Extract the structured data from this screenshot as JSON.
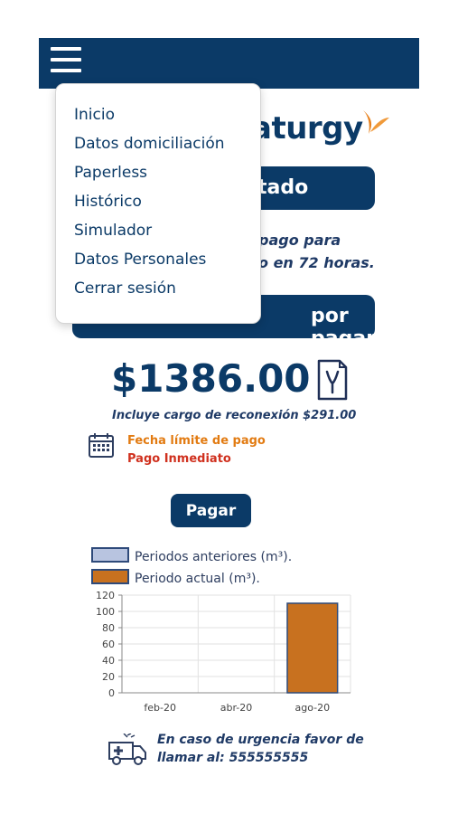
{
  "brand": {
    "logo_text": "aturgy",
    "color": "#0b3a67",
    "accent": "#e8821e"
  },
  "header": {
    "menu_icon": "hamburger-icon"
  },
  "status": {
    "label": "tado"
  },
  "info": {
    "line1": "pago para",
    "line2": "o en 72 horas."
  },
  "amount_bar": {
    "label": "por pagar"
  },
  "menu": {
    "items": [
      {
        "label": "Inicio"
      },
      {
        "label": "Datos domiciliación"
      },
      {
        "label": "Paperless"
      },
      {
        "label": "Histórico"
      },
      {
        "label": "Simulador"
      },
      {
        "label": "Datos Personales"
      },
      {
        "label": "Cerrar sesión"
      }
    ]
  },
  "bill": {
    "amount": "$1386.00",
    "reconnection": "Incluye cargo de reconexión $291.00",
    "due_label": "Fecha límite de pago",
    "due_value": "Pago Inmediato",
    "pay_label": "Pagar"
  },
  "legend": {
    "previous": "Periodos anteriores (m³).",
    "current": "Periodo actual (m³)."
  },
  "chart_data": {
    "type": "bar",
    "categories": [
      "feb-20",
      "abr-20",
      "ago-20"
    ],
    "series": [
      {
        "name": "Periodos anteriores (m³).",
        "values": [
          0,
          0,
          0
        ],
        "color": "#b8c4e0"
      },
      {
        "name": "Periodo actual (m³).",
        "values": [
          0,
          0,
          110
        ],
        "color": "#c8711f"
      }
    ],
    "yticks": [
      0,
      20,
      40,
      60,
      80,
      100,
      120
    ],
    "ylim": [
      0,
      120
    ],
    "grid": true,
    "legend_placement": "top-left"
  },
  "emergency": {
    "line1": "En caso de urgencia favor de",
    "line2": "llamar al: 555555555"
  }
}
